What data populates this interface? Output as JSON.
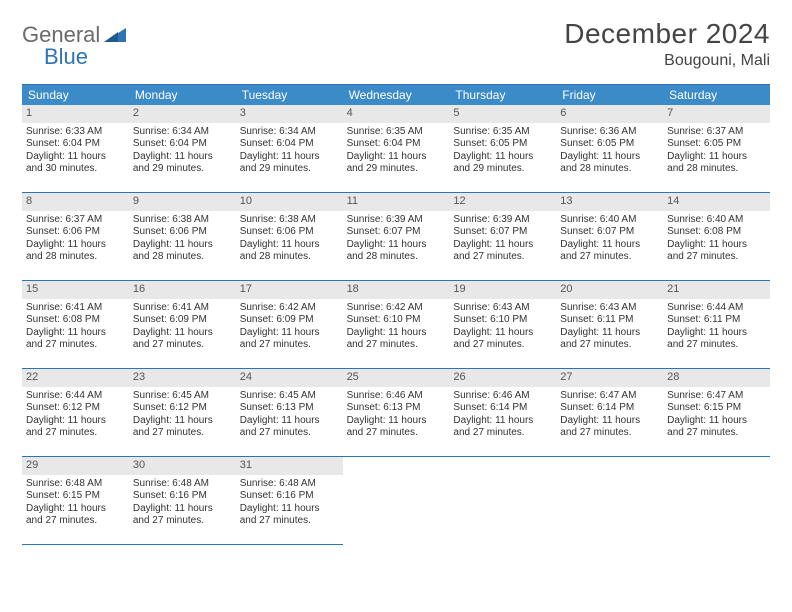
{
  "brand": {
    "part1": "General",
    "part2": "Blue"
  },
  "title": "December 2024",
  "location": "Bougouni, Mali",
  "colors": {
    "header_bg": "#3b8bc9",
    "header_text": "#ffffff",
    "border": "#2e74b5",
    "daynum_bg": "#e8e8e8",
    "text": "#333333",
    "logo_gray": "#6b6b6b",
    "logo_blue": "#2e74b5",
    "page_bg": "#ffffff"
  },
  "weekdays": [
    "Sunday",
    "Monday",
    "Tuesday",
    "Wednesday",
    "Thursday",
    "Friday",
    "Saturday"
  ],
  "days": [
    {
      "n": "1",
      "sr": "6:33 AM",
      "ss": "6:04 PM",
      "dl": "11 hours and 30 minutes."
    },
    {
      "n": "2",
      "sr": "6:34 AM",
      "ss": "6:04 PM",
      "dl": "11 hours and 29 minutes."
    },
    {
      "n": "3",
      "sr": "6:34 AM",
      "ss": "6:04 PM",
      "dl": "11 hours and 29 minutes."
    },
    {
      "n": "4",
      "sr": "6:35 AM",
      "ss": "6:04 PM",
      "dl": "11 hours and 29 minutes."
    },
    {
      "n": "5",
      "sr": "6:35 AM",
      "ss": "6:05 PM",
      "dl": "11 hours and 29 minutes."
    },
    {
      "n": "6",
      "sr": "6:36 AM",
      "ss": "6:05 PM",
      "dl": "11 hours and 28 minutes."
    },
    {
      "n": "7",
      "sr": "6:37 AM",
      "ss": "6:05 PM",
      "dl": "11 hours and 28 minutes."
    },
    {
      "n": "8",
      "sr": "6:37 AM",
      "ss": "6:06 PM",
      "dl": "11 hours and 28 minutes."
    },
    {
      "n": "9",
      "sr": "6:38 AM",
      "ss": "6:06 PM",
      "dl": "11 hours and 28 minutes."
    },
    {
      "n": "10",
      "sr": "6:38 AM",
      "ss": "6:06 PM",
      "dl": "11 hours and 28 minutes."
    },
    {
      "n": "11",
      "sr": "6:39 AM",
      "ss": "6:07 PM",
      "dl": "11 hours and 28 minutes."
    },
    {
      "n": "12",
      "sr": "6:39 AM",
      "ss": "6:07 PM",
      "dl": "11 hours and 27 minutes."
    },
    {
      "n": "13",
      "sr": "6:40 AM",
      "ss": "6:07 PM",
      "dl": "11 hours and 27 minutes."
    },
    {
      "n": "14",
      "sr": "6:40 AM",
      "ss": "6:08 PM",
      "dl": "11 hours and 27 minutes."
    },
    {
      "n": "15",
      "sr": "6:41 AM",
      "ss": "6:08 PM",
      "dl": "11 hours and 27 minutes."
    },
    {
      "n": "16",
      "sr": "6:41 AM",
      "ss": "6:09 PM",
      "dl": "11 hours and 27 minutes."
    },
    {
      "n": "17",
      "sr": "6:42 AM",
      "ss": "6:09 PM",
      "dl": "11 hours and 27 minutes."
    },
    {
      "n": "18",
      "sr": "6:42 AM",
      "ss": "6:10 PM",
      "dl": "11 hours and 27 minutes."
    },
    {
      "n": "19",
      "sr": "6:43 AM",
      "ss": "6:10 PM",
      "dl": "11 hours and 27 minutes."
    },
    {
      "n": "20",
      "sr": "6:43 AM",
      "ss": "6:11 PM",
      "dl": "11 hours and 27 minutes."
    },
    {
      "n": "21",
      "sr": "6:44 AM",
      "ss": "6:11 PM",
      "dl": "11 hours and 27 minutes."
    },
    {
      "n": "22",
      "sr": "6:44 AM",
      "ss": "6:12 PM",
      "dl": "11 hours and 27 minutes."
    },
    {
      "n": "23",
      "sr": "6:45 AM",
      "ss": "6:12 PM",
      "dl": "11 hours and 27 minutes."
    },
    {
      "n": "24",
      "sr": "6:45 AM",
      "ss": "6:13 PM",
      "dl": "11 hours and 27 minutes."
    },
    {
      "n": "25",
      "sr": "6:46 AM",
      "ss": "6:13 PM",
      "dl": "11 hours and 27 minutes."
    },
    {
      "n": "26",
      "sr": "6:46 AM",
      "ss": "6:14 PM",
      "dl": "11 hours and 27 minutes."
    },
    {
      "n": "27",
      "sr": "6:47 AM",
      "ss": "6:14 PM",
      "dl": "11 hours and 27 minutes."
    },
    {
      "n": "28",
      "sr": "6:47 AM",
      "ss": "6:15 PM",
      "dl": "11 hours and 27 minutes."
    },
    {
      "n": "29",
      "sr": "6:48 AM",
      "ss": "6:15 PM",
      "dl": "11 hours and 27 minutes."
    },
    {
      "n": "30",
      "sr": "6:48 AM",
      "ss": "6:16 PM",
      "dl": "11 hours and 27 minutes."
    },
    {
      "n": "31",
      "sr": "6:48 AM",
      "ss": "6:16 PM",
      "dl": "11 hours and 27 minutes."
    }
  ],
  "labels": {
    "sunrise": "Sunrise:",
    "sunset": "Sunset:",
    "daylight": "Daylight:"
  }
}
